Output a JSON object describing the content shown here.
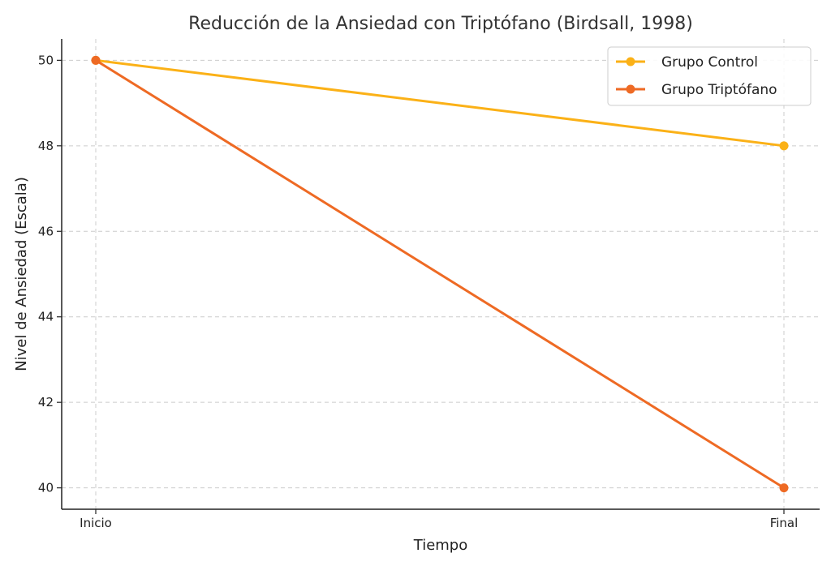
{
  "chart_data": {
    "type": "line",
    "title": "Reducción de la Ansiedad con Triptófano (Birdsall, 1998)",
    "xlabel": "Tiempo",
    "ylabel": "Nivel de Ansiedad (Escala)",
    "categories": [
      "Inicio",
      "Final"
    ],
    "ylim": [
      39.5,
      50.5
    ],
    "yticks": [
      40,
      42,
      44,
      46,
      48,
      50
    ],
    "grid": true,
    "legend_position": "top-right",
    "series": [
      {
        "name": "Grupo Control",
        "values": [
          50,
          48
        ],
        "color": "#fbb117"
      },
      {
        "name": "Grupo Triptófano",
        "values": [
          50,
          40
        ],
        "color": "#ee6a24"
      }
    ]
  }
}
